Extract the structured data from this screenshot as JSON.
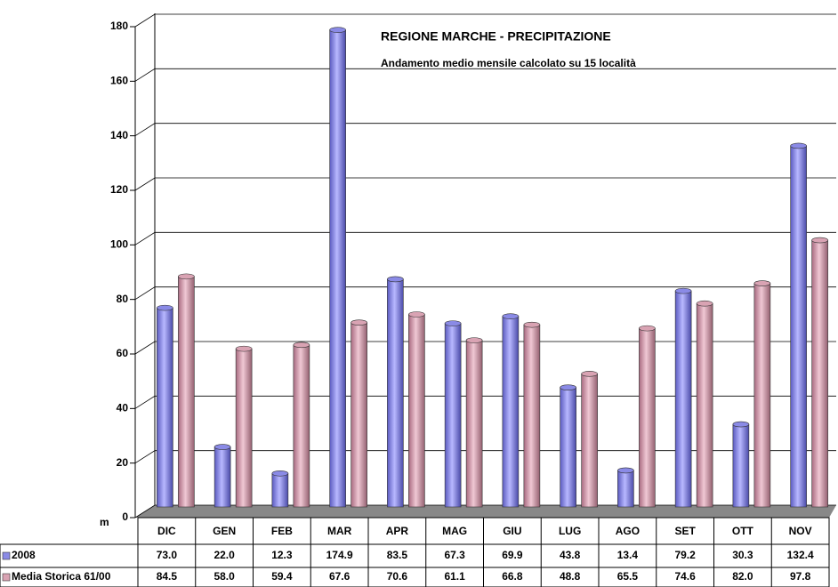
{
  "chart_data": {
    "type": "bar",
    "title": "REGIONE MARCHE - PRECIPITAZIONE",
    "subtitle": "Andamento medio mensile calcolato su 15 località",
    "y_label": "m",
    "categories": [
      "DIC",
      "GEN",
      "FEB",
      "MAR",
      "APR",
      "MAG",
      "GIU",
      "LUG",
      "AGO",
      "SET",
      "OTT",
      "NOV"
    ],
    "series": [
      {
        "name": "2008",
        "color": "#8a8ae6",
        "values": [
          73.0,
          22.0,
          12.3,
          174.9,
          83.5,
          67.3,
          69.9,
          43.8,
          13.4,
          79.2,
          30.3,
          132.4
        ],
        "value_labels": [
          "73.0",
          "22.0",
          "12.3",
          "174.9",
          "83.5",
          "67.3",
          "69.9",
          "43.8",
          "13.4",
          "79.2",
          "30.3",
          "132.4"
        ]
      },
      {
        "name": "Media Storica 61/00",
        "color": "#d9a3b3",
        "values": [
          84.5,
          58.0,
          59.4,
          67.6,
          70.6,
          61.1,
          66.8,
          48.8,
          65.5,
          74.6,
          82.0,
          97.8
        ],
        "value_labels": [
          "84.5",
          "58.0",
          "59.4",
          "67.6",
          "70.6",
          "61.1",
          "66.8",
          "48.8",
          "65.5",
          "74.6",
          "82.0",
          "97.8"
        ]
      }
    ],
    "ylim": [
      0,
      180
    ],
    "yticks": [
      0,
      20,
      40,
      60,
      80,
      100,
      120,
      140,
      160,
      180
    ],
    "grid": true
  }
}
